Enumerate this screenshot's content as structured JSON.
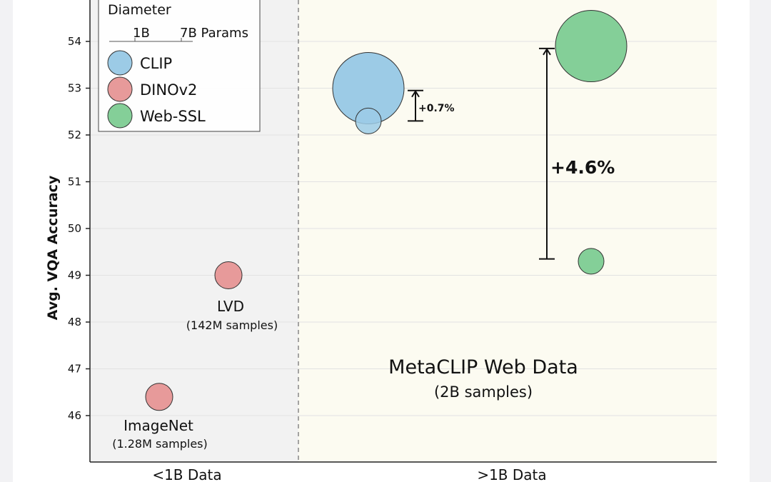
{
  "chart_data": {
    "type": "scatter",
    "title": "",
    "ylabel": "Avg. VQA Accuracy",
    "xlabel": "",
    "ylim": [
      45,
      55
    ],
    "yticks": [
      46,
      47,
      48,
      49,
      50,
      51,
      52,
      53,
      54
    ],
    "grid": true,
    "categories": [
      "<1B Data",
      ">1B Data"
    ],
    "legend": {
      "title": "Diameter",
      "size_labels": [
        "1B",
        "7B Params"
      ],
      "entries": [
        "CLIP",
        "DINOv2",
        "Web-SSL"
      ],
      "placement": "top-left"
    },
    "series": [
      {
        "name": "CLIP",
        "color": "#9ccbe6",
        "points": [
          {
            "category": ">1B Data",
            "y": 52.3,
            "params": "1B"
          },
          {
            "category": ">1B Data",
            "y": 53.0,
            "params": "7B"
          }
        ]
      },
      {
        "name": "DINOv2",
        "color": "#e79a9a",
        "points": [
          {
            "category": "<1B Data",
            "y": 46.4,
            "params": "1B"
          },
          {
            "category": "<1B Data",
            "y": 49.0,
            "params": "1B"
          }
        ]
      },
      {
        "name": "Web-SSL",
        "color": "#84cf98",
        "points": [
          {
            "category": ">1B Data",
            "y": 49.3,
            "params": "1B"
          },
          {
            "category": ">1B Data",
            "y": 53.9,
            "params": "7B"
          }
        ]
      }
    ],
    "annotations": [
      {
        "name": "ImageNet",
        "sub": "(1.28M samples)"
      },
      {
        "name": "LVD",
        "sub": "(142M samples)"
      },
      {
        "name": "MetaCLIP Web Data",
        "sub": "(2B samples)"
      },
      {
        "text": "+0.7%",
        "from": 52.3,
        "to": 52.95
      },
      {
        "text": "+4.6%",
        "from": 49.35,
        "to": 53.85
      }
    ]
  }
}
